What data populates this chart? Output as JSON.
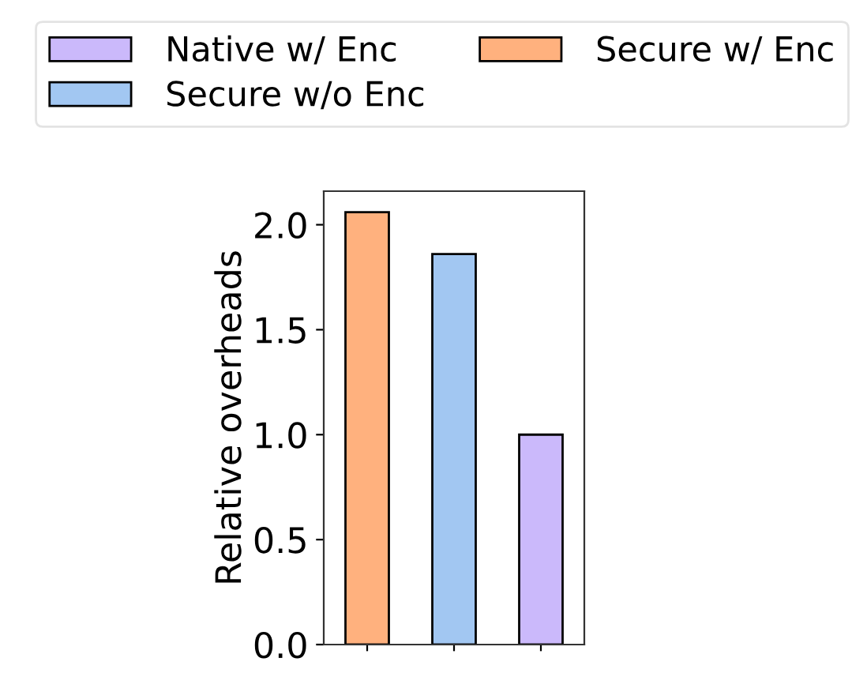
{
  "chart_data": {
    "type": "bar",
    "ylabel": "Relative overheads",
    "categories": [
      null,
      null,
      null
    ],
    "series": [
      {
        "name": "Native w/ Enc",
        "color": "#cbb9fb",
        "values": [
          null,
          null,
          1.0
        ]
      },
      {
        "name": "Secure w/o Enc",
        "color": "#a2c7f2",
        "values": [
          null,
          1.86,
          null
        ]
      },
      {
        "name": "Secure w/ Enc",
        "color": "#ffb17e",
        "values": [
          2.06,
          null,
          null
        ]
      }
    ],
    "ylim": [
      0,
      2.16
    ],
    "yticks": [
      {
        "value": 0,
        "label": "0.0"
      },
      0.5,
      {
        "value": 1,
        "label": "1.0"
      },
      1.5,
      {
        "value": 2,
        "label": "2.0"
      }
    ],
    "legend": "top",
    "grid": false
  }
}
